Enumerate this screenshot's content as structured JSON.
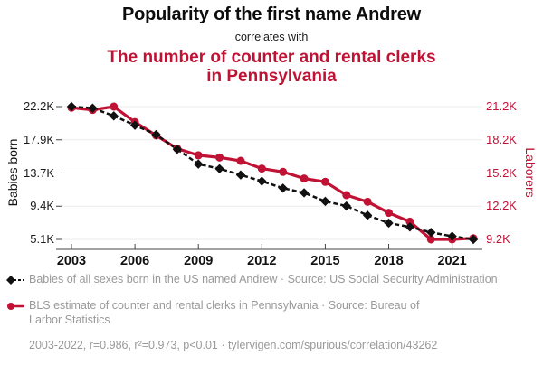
{
  "header": {
    "title_primary": "Popularity of the first name Andrew",
    "subtitle": "correlates with",
    "title_secondary": "The number of counter and rental clerks in Pennsylvania"
  },
  "chart_data": {
    "type": "line",
    "x": [
      2003,
      2004,
      2005,
      2006,
      2007,
      2008,
      2009,
      2010,
      2011,
      2012,
      2013,
      2014,
      2015,
      2016,
      2017,
      2018,
      2019,
      2020,
      2021,
      2022
    ],
    "x_tick_labels": [
      "2003",
      "2006",
      "2009",
      "2012",
      "2015",
      "2018",
      "2021"
    ],
    "units": "thousands",
    "grid": true,
    "legend_position": "bottom",
    "left_axis": {
      "title": "Babies born",
      "tick_labels": [
        "22.2K",
        "17.9K",
        "13.7K",
        "9.4K",
        "5.1K"
      ],
      "min": 5.1,
      "max": 22.2
    },
    "right_axis": {
      "title": "Laborers",
      "tick_labels": [
        "21.2K",
        "18.2K",
        "15.2K",
        "12.2K",
        "9.2K"
      ],
      "min": 9.2,
      "max": 21.2
    },
    "series": [
      {
        "name": "Babies of all sexes born in the US named Andrew",
        "axis": "left",
        "color": "#111111",
        "style": "dashed",
        "marker": "diamond",
        "values": [
          22.2,
          22.0,
          21.0,
          19.8,
          18.6,
          16.7,
          14.8,
          14.2,
          13.4,
          12.6,
          11.7,
          11.1,
          10.0,
          9.4,
          8.2,
          7.2,
          6.7,
          6.0,
          5.5,
          5.1
        ]
      },
      {
        "name": "BLS estimate of counter and rental clerks in Pennsylvania",
        "axis": "right",
        "color": "#c01235",
        "style": "solid",
        "marker": "circle",
        "values": [
          21.1,
          20.9,
          21.2,
          19.8,
          18.6,
          17.4,
          16.8,
          16.6,
          16.3,
          15.6,
          15.3,
          14.7,
          14.4,
          13.2,
          12.6,
          11.6,
          10.8,
          9.2,
          9.2,
          9.3
        ]
      }
    ]
  },
  "legend": {
    "items": [
      {
        "label": "Babies of all sexes born in the US named Andrew · Source: US Social Security Administration"
      },
      {
        "label": "BLS estimate of counter and rental clerks in Pennsylvania · Source: Bureau of Larbor Statistics"
      }
    ]
  },
  "footer": {
    "stats": "2003-2022, r=0.986, r²=0.973, p<0.01 · tylervigen.com/spurious/correlation/43262"
  },
  "colors": {
    "accent_red": "#c01235",
    "series_black": "#111111",
    "legend_gray": "#999999",
    "gridline": "#ebebeb"
  }
}
